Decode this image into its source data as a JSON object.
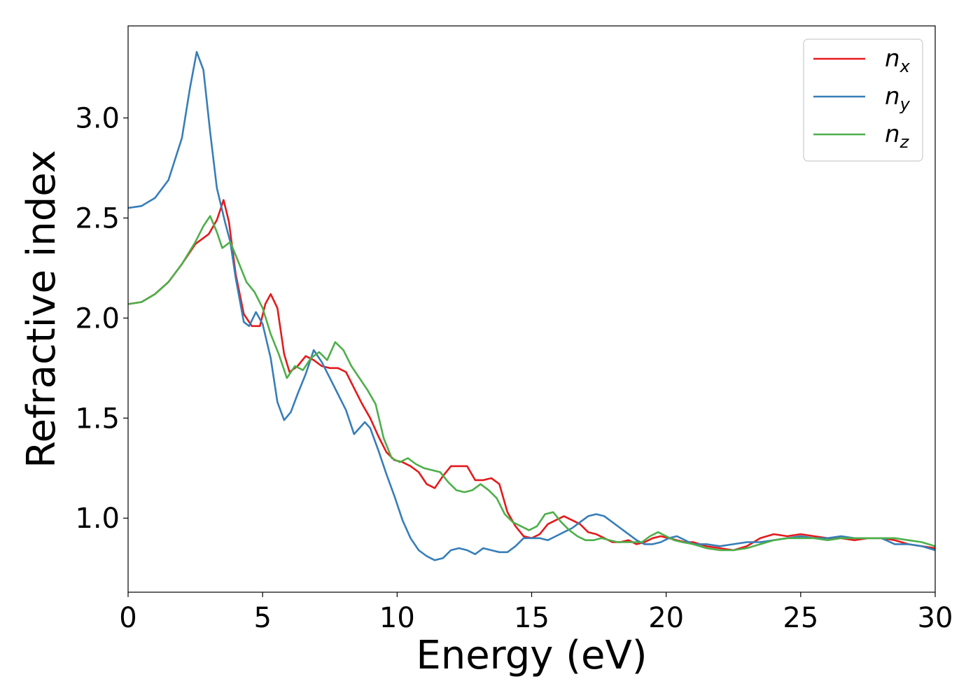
{
  "chart_data": {
    "type": "line",
    "title": "",
    "xlabel": "Energy (eV)",
    "ylabel": "Refractive index",
    "xlim": [
      0,
      30
    ],
    "ylim": [
      0.63,
      3.46
    ],
    "xticks": [
      0,
      5,
      10,
      15,
      20,
      25,
      30
    ],
    "yticks": [
      1.0,
      1.5,
      2.0,
      2.5,
      3.0
    ],
    "grid": false,
    "legend_position": "top-right",
    "series": [
      {
        "name": "n",
        "subscript": "x",
        "color": "#e41a1c",
        "points": [
          [
            0,
            2.07
          ],
          [
            0.5,
            2.08
          ],
          [
            1,
            2.12
          ],
          [
            1.5,
            2.18
          ],
          [
            2,
            2.27
          ],
          [
            2.5,
            2.37
          ],
          [
            3,
            2.42
          ],
          [
            3.3,
            2.49
          ],
          [
            3.55,
            2.59
          ],
          [
            3.75,
            2.48
          ],
          [
            4,
            2.22
          ],
          [
            4.3,
            2.02
          ],
          [
            4.6,
            1.96
          ],
          [
            4.9,
            1.96
          ],
          [
            5.1,
            2.07
          ],
          [
            5.3,
            2.12
          ],
          [
            5.55,
            2.05
          ],
          [
            5.8,
            1.82
          ],
          [
            6,
            1.73
          ],
          [
            6.3,
            1.76
          ],
          [
            6.6,
            1.81
          ],
          [
            6.9,
            1.79
          ],
          [
            7.2,
            1.76
          ],
          [
            7.5,
            1.75
          ],
          [
            7.8,
            1.75
          ],
          [
            8.1,
            1.73
          ],
          [
            8.4,
            1.65
          ],
          [
            8.7,
            1.57
          ],
          [
            9,
            1.5
          ],
          [
            9.3,
            1.41
          ],
          [
            9.6,
            1.33
          ],
          [
            9.9,
            1.29
          ],
          [
            10.2,
            1.28
          ],
          [
            10.5,
            1.26
          ],
          [
            10.8,
            1.23
          ],
          [
            11.1,
            1.17
          ],
          [
            11.4,
            1.15
          ],
          [
            11.7,
            1.21
          ],
          [
            12,
            1.26
          ],
          [
            12.3,
            1.26
          ],
          [
            12.6,
            1.26
          ],
          [
            12.9,
            1.19
          ],
          [
            13.2,
            1.19
          ],
          [
            13.5,
            1.2
          ],
          [
            13.8,
            1.17
          ],
          [
            14.1,
            1.03
          ],
          [
            14.4,
            0.96
          ],
          [
            14.7,
            0.91
          ],
          [
            15,
            0.9
          ],
          [
            15.3,
            0.92
          ],
          [
            15.6,
            0.97
          ],
          [
            15.9,
            0.99
          ],
          [
            16.2,
            1.01
          ],
          [
            16.5,
            0.99
          ],
          [
            16.8,
            0.97
          ],
          [
            17.1,
            0.93
          ],
          [
            17.4,
            0.92
          ],
          [
            17.7,
            0.9
          ],
          [
            18,
            0.88
          ],
          [
            18.3,
            0.88
          ],
          [
            18.6,
            0.89
          ],
          [
            18.9,
            0.87
          ],
          [
            19.2,
            0.88
          ],
          [
            19.5,
            0.9
          ],
          [
            19.8,
            0.91
          ],
          [
            20.1,
            0.9
          ],
          [
            20.4,
            0.89
          ],
          [
            20.7,
            0.88
          ],
          [
            21,
            0.88
          ],
          [
            21.5,
            0.86
          ],
          [
            22,
            0.85
          ],
          [
            22.5,
            0.84
          ],
          [
            23,
            0.86
          ],
          [
            23.5,
            0.9
          ],
          [
            24,
            0.92
          ],
          [
            24.5,
            0.91
          ],
          [
            25,
            0.92
          ],
          [
            25.5,
            0.91
          ],
          [
            26,
            0.9
          ],
          [
            26.5,
            0.9
          ],
          [
            27,
            0.89
          ],
          [
            27.5,
            0.9
          ],
          [
            28,
            0.9
          ],
          [
            28.5,
            0.89
          ],
          [
            29,
            0.87
          ],
          [
            29.5,
            0.86
          ],
          [
            30,
            0.85
          ]
        ]
      },
      {
        "name": "n",
        "subscript": "y",
        "color": "#377eb8",
        "points": [
          [
            0,
            2.55
          ],
          [
            0.5,
            2.56
          ],
          [
            1,
            2.6
          ],
          [
            1.5,
            2.69
          ],
          [
            2,
            2.9
          ],
          [
            2.3,
            3.15
          ],
          [
            2.55,
            3.33
          ],
          [
            2.8,
            3.24
          ],
          [
            3.05,
            2.93
          ],
          [
            3.3,
            2.65
          ],
          [
            3.6,
            2.48
          ],
          [
            3.8,
            2.38
          ],
          [
            4,
            2.2
          ],
          [
            4.3,
            1.98
          ],
          [
            4.5,
            1.96
          ],
          [
            4.75,
            2.03
          ],
          [
            5,
            1.97
          ],
          [
            5.3,
            1.8
          ],
          [
            5.55,
            1.58
          ],
          [
            5.8,
            1.49
          ],
          [
            6.05,
            1.53
          ],
          [
            6.3,
            1.62
          ],
          [
            6.6,
            1.72
          ],
          [
            6.9,
            1.84
          ],
          [
            7.2,
            1.78
          ],
          [
            7.5,
            1.7
          ],
          [
            7.8,
            1.62
          ],
          [
            8.1,
            1.54
          ],
          [
            8.4,
            1.42
          ],
          [
            8.6,
            1.45
          ],
          [
            8.8,
            1.48
          ],
          [
            9,
            1.45
          ],
          [
            9.3,
            1.34
          ],
          [
            9.6,
            1.22
          ],
          [
            9.9,
            1.11
          ],
          [
            10.2,
            0.99
          ],
          [
            10.5,
            0.9
          ],
          [
            10.8,
            0.84
          ],
          [
            11.1,
            0.81
          ],
          [
            11.4,
            0.79
          ],
          [
            11.7,
            0.8
          ],
          [
            12,
            0.84
          ],
          [
            12.3,
            0.85
          ],
          [
            12.6,
            0.84
          ],
          [
            12.9,
            0.82
          ],
          [
            13.2,
            0.85
          ],
          [
            13.5,
            0.84
          ],
          [
            13.8,
            0.83
          ],
          [
            14.1,
            0.83
          ],
          [
            14.4,
            0.86
          ],
          [
            14.7,
            0.9
          ],
          [
            15,
            0.9
          ],
          [
            15.3,
            0.9
          ],
          [
            15.6,
            0.89
          ],
          [
            15.9,
            0.91
          ],
          [
            16.2,
            0.93
          ],
          [
            16.5,
            0.95
          ],
          [
            16.8,
            0.98
          ],
          [
            17.1,
            1.01
          ],
          [
            17.4,
            1.02
          ],
          [
            17.7,
            1.01
          ],
          [
            18,
            0.98
          ],
          [
            18.3,
            0.95
          ],
          [
            18.6,
            0.92
          ],
          [
            18.9,
            0.89
          ],
          [
            19.2,
            0.87
          ],
          [
            19.5,
            0.87
          ],
          [
            19.8,
            0.88
          ],
          [
            20.1,
            0.9
          ],
          [
            20.4,
            0.91
          ],
          [
            20.7,
            0.89
          ],
          [
            21,
            0.87
          ],
          [
            21.5,
            0.87
          ],
          [
            22,
            0.86
          ],
          [
            22.5,
            0.87
          ],
          [
            23,
            0.88
          ],
          [
            23.5,
            0.88
          ],
          [
            24,
            0.89
          ],
          [
            24.5,
            0.9
          ],
          [
            25,
            0.91
          ],
          [
            25.5,
            0.9
          ],
          [
            26,
            0.9
          ],
          [
            26.5,
            0.91
          ],
          [
            27,
            0.9
          ],
          [
            27.5,
            0.9
          ],
          [
            28,
            0.9
          ],
          [
            28.5,
            0.87
          ],
          [
            29,
            0.87
          ],
          [
            29.5,
            0.86
          ],
          [
            30,
            0.84
          ]
        ]
      },
      {
        "name": "n",
        "subscript": "z",
        "color": "#4daf4a",
        "points": [
          [
            0,
            2.07
          ],
          [
            0.5,
            2.08
          ],
          [
            1,
            2.12
          ],
          [
            1.5,
            2.18
          ],
          [
            2,
            2.27
          ],
          [
            2.5,
            2.38
          ],
          [
            2.8,
            2.46
          ],
          [
            3.05,
            2.51
          ],
          [
            3.3,
            2.43
          ],
          [
            3.5,
            2.35
          ],
          [
            3.8,
            2.38
          ],
          [
            4.1,
            2.28
          ],
          [
            4.4,
            2.18
          ],
          [
            4.7,
            2.13
          ],
          [
            5,
            2.05
          ],
          [
            5.3,
            1.92
          ],
          [
            5.6,
            1.82
          ],
          [
            5.9,
            1.7
          ],
          [
            6.2,
            1.76
          ],
          [
            6.5,
            1.74
          ],
          [
            6.8,
            1.8
          ],
          [
            7.1,
            1.83
          ],
          [
            7.4,
            1.79
          ],
          [
            7.7,
            1.88
          ],
          [
            8,
            1.84
          ],
          [
            8.3,
            1.76
          ],
          [
            8.6,
            1.7
          ],
          [
            8.9,
            1.64
          ],
          [
            9.2,
            1.57
          ],
          [
            9.5,
            1.4
          ],
          [
            9.8,
            1.3
          ],
          [
            10.1,
            1.28
          ],
          [
            10.4,
            1.3
          ],
          [
            10.7,
            1.27
          ],
          [
            11,
            1.25
          ],
          [
            11.3,
            1.24
          ],
          [
            11.6,
            1.23
          ],
          [
            11.9,
            1.18
          ],
          [
            12.2,
            1.14
          ],
          [
            12.5,
            1.13
          ],
          [
            12.8,
            1.14
          ],
          [
            13.1,
            1.17
          ],
          [
            13.4,
            1.14
          ],
          [
            13.7,
            1.1
          ],
          [
            14,
            1.02
          ],
          [
            14.3,
            0.98
          ],
          [
            14.6,
            0.96
          ],
          [
            14.9,
            0.94
          ],
          [
            15.2,
            0.96
          ],
          [
            15.5,
            1.02
          ],
          [
            15.8,
            1.03
          ],
          [
            16.1,
            0.98
          ],
          [
            16.4,
            0.94
          ],
          [
            16.7,
            0.91
          ],
          [
            17,
            0.89
          ],
          [
            17.3,
            0.89
          ],
          [
            17.6,
            0.9
          ],
          [
            17.9,
            0.89
          ],
          [
            18.2,
            0.88
          ],
          [
            18.5,
            0.88
          ],
          [
            18.8,
            0.88
          ],
          [
            19.1,
            0.88
          ],
          [
            19.4,
            0.91
          ],
          [
            19.7,
            0.93
          ],
          [
            20,
            0.91
          ],
          [
            20.3,
            0.89
          ],
          [
            20.6,
            0.88
          ],
          [
            21,
            0.87
          ],
          [
            21.5,
            0.85
          ],
          [
            22,
            0.84
          ],
          [
            22.5,
            0.84
          ],
          [
            23,
            0.85
          ],
          [
            23.5,
            0.87
          ],
          [
            24,
            0.89
          ],
          [
            24.5,
            0.9
          ],
          [
            25,
            0.9
          ],
          [
            25.5,
            0.9
          ],
          [
            26,
            0.89
          ],
          [
            26.5,
            0.9
          ],
          [
            27,
            0.9
          ],
          [
            27.5,
            0.9
          ],
          [
            28,
            0.9
          ],
          [
            28.5,
            0.9
          ],
          [
            29,
            0.89
          ],
          [
            29.5,
            0.88
          ],
          [
            30,
            0.86
          ]
        ]
      }
    ]
  }
}
